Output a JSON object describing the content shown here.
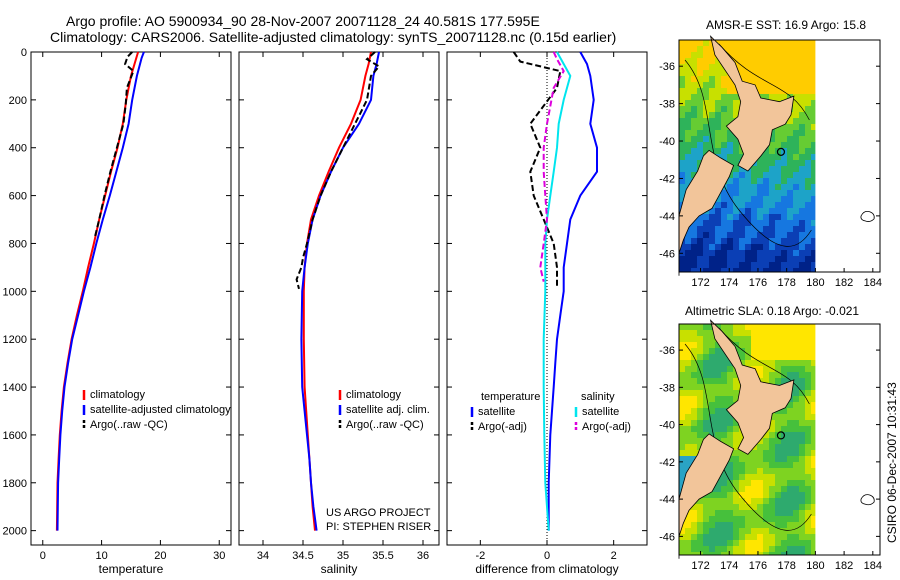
{
  "header": {
    "line1": "Argo profile: AO 5900934_90 28-Nov-2007 20071128_24 40.581S 177.595E",
    "line2": "Climatology: CARS2006. Satellite-adjusted climatology: synTS_20071128.nc (0.15d earlier)"
  },
  "stamp": "CSIRO 06-Dec-2007 10:31:43",
  "project_note": [
    "US ARGO PROJECT",
    "PI: STEPHEN RISER"
  ],
  "colors": {
    "climatology": "#ff0000",
    "satellite": "#0000ff",
    "argo": "#000000",
    "sat_salinity": "#00e5ee",
    "argo_salinity": "#dd00dd",
    "land": "#f2c59a"
  },
  "chart_data": [
    {
      "type": "line",
      "xlabel": "temperature",
      "xlim": [
        -2,
        32
      ],
      "ylim": [
        2060,
        0
      ],
      "x_ticks": [
        0,
        10,
        20,
        30
      ],
      "y_ticks": [
        0,
        200,
        400,
        600,
        800,
        1000,
        1200,
        1400,
        1600,
        1800,
        2000
      ],
      "legend": [
        "climatology",
        "satellite-adjusted climatology",
        "Argo(..raw -QC)"
      ],
      "series": [
        {
          "name": "climatology",
          "color": "#ff0000",
          "dash": "solid",
          "x": [
            16.2,
            15.9,
            15.0,
            14.2,
            13.6,
            12.7,
            11.6,
            10.6,
            9.6,
            8.7,
            7.7,
            6.8,
            5.8,
            4.9,
            4.2,
            3.6,
            3.2,
            2.9,
            2.7,
            2.5,
            2.4
          ],
          "y": [
            0,
            25,
            100,
            200,
            300,
            400,
            500,
            600,
            700,
            800,
            900,
            1000,
            1100,
            1200,
            1300,
            1400,
            1500,
            1600,
            1700,
            1800,
            2000
          ]
        },
        {
          "name": "satellite-adjusted climatology",
          "color": "#0000ff",
          "dash": "solid",
          "x": [
            17.2,
            16.8,
            16.0,
            15.2,
            14.6,
            13.6,
            12.5,
            11.4,
            10.2,
            9.1,
            8.1,
            7.0,
            6.0,
            5.0,
            4.3,
            3.7,
            3.3,
            3.0,
            2.8,
            2.6,
            2.5
          ],
          "y": [
            0,
            25,
            100,
            200,
            300,
            400,
            500,
            600,
            700,
            800,
            900,
            1000,
            1100,
            1200,
            1300,
            1400,
            1500,
            1600,
            1700,
            1800,
            2000
          ]
        },
        {
          "name": "Argo(..raw -QC)",
          "color": "#000000",
          "dash": "dashed",
          "x": [
            15.2,
            14.4,
            14.0,
            15.4,
            14.3,
            14.1,
            13.7,
            12.6,
            11.5,
            10.5,
            9.6,
            8.8
          ],
          "y": [
            0,
            20,
            50,
            80,
            150,
            220,
            300,
            400,
            500,
            600,
            700,
            780
          ]
        }
      ]
    },
    {
      "type": "line",
      "xlabel": "salinity",
      "xlim": [
        33.7,
        36.2
      ],
      "ylim": [
        2060,
        0
      ],
      "x_ticks": [
        34,
        34.5,
        35,
        35.5,
        36
      ],
      "legend": [
        "climatology",
        "satellite adj. clim.",
        "Argo(..raw -QC)"
      ],
      "series": [
        {
          "name": "climatology",
          "color": "#ff0000",
          "dash": "solid",
          "x": [
            35.35,
            35.32,
            35.28,
            35.22,
            35.1,
            34.95,
            34.82,
            34.7,
            34.6,
            34.55,
            34.52,
            34.51,
            34.51,
            34.52,
            34.54,
            34.56,
            34.58,
            34.6,
            34.62,
            34.65
          ],
          "y": [
            0,
            50,
            100,
            200,
            300,
            400,
            500,
            600,
            700,
            800,
            900,
            1000,
            1200,
            1400,
            1500,
            1600,
            1700,
            1800,
            1900,
            2000
          ]
        },
        {
          "name": "satellite adj. clim.",
          "color": "#0000ff",
          "dash": "solid",
          "x": [
            35.45,
            35.42,
            35.38,
            35.35,
            35.2,
            35.0,
            34.85,
            34.72,
            34.62,
            34.56,
            34.52,
            34.49,
            34.48,
            34.49,
            34.52,
            34.55,
            34.58,
            34.6,
            34.63,
            34.67
          ],
          "y": [
            0,
            50,
            100,
            200,
            300,
            400,
            500,
            600,
            700,
            800,
            900,
            1000,
            1200,
            1400,
            1500,
            1600,
            1700,
            1800,
            1900,
            2000
          ]
        },
        {
          "name": "Argo(..raw -QC)",
          "color": "#000000",
          "dash": "dashed",
          "x": [
            35.4,
            35.3,
            35.45,
            35.35,
            35.3,
            35.15,
            35.0,
            34.85,
            34.72,
            34.62,
            34.55,
            34.5,
            34.48,
            34.42,
            34.45
          ],
          "y": [
            0,
            30,
            60,
            100,
            200,
            300,
            400,
            500,
            600,
            700,
            800,
            860,
            900,
            950,
            990
          ]
        }
      ]
    },
    {
      "type": "line",
      "xlabel": "difference from climatology",
      "xlim": [
        -3,
        3
      ],
      "ylim": [
        2060,
        0
      ],
      "x_ticks": [
        -2,
        0,
        2
      ],
      "legend_groups": [
        {
          "title": "temperature",
          "items": [
            "satellite",
            "Argo(-adj)"
          ]
        },
        {
          "title": "salinity",
          "items": [
            "satellite",
            "Argo(-adj)"
          ]
        }
      ],
      "series": [
        {
          "name": "temperature satellite",
          "color": "#0000ff",
          "dash": "solid",
          "x": [
            1.0,
            1.2,
            1.3,
            1.4,
            1.3,
            1.5,
            1.5,
            1.0,
            0.7,
            0.6,
            0.5,
            0.5,
            0.4,
            0.3,
            0.25,
            0.2,
            0.15,
            0.1,
            0.05,
            0.05
          ],
          "y": [
            0,
            50,
            100,
            200,
            300,
            400,
            500,
            600,
            700,
            800,
            900,
            1000,
            1100,
            1200,
            1300,
            1400,
            1500,
            1600,
            1800,
            2000
          ]
        },
        {
          "name": "temperature Argo(-adj)",
          "color": "#000000",
          "dash": "dashed",
          "x": [
            -1.0,
            -0.8,
            0.4,
            0.3,
            -0.5,
            -0.2,
            -0.5,
            -0.4,
            -0.1,
            0.2,
            0.3,
            0.3
          ],
          "y": [
            0,
            40,
            80,
            150,
            300,
            400,
            500,
            600,
            700,
            800,
            900,
            980
          ]
        },
        {
          "name": "salinity satellite",
          "color": "#00e5ee",
          "dash": "solid",
          "x": [
            0.3,
            0.5,
            0.7,
            0.5,
            0.35,
            0.3,
            0.2,
            0.1,
            0.0,
            -0.05,
            -0.05,
            -0.1,
            -0.1,
            -0.08,
            -0.05,
            0.0,
            0.05
          ],
          "y": [
            0,
            50,
            100,
            200,
            300,
            400,
            500,
            600,
            700,
            800,
            1000,
            1200,
            1400,
            1600,
            1800,
            1900,
            2000
          ]
        },
        {
          "name": "salinity Argo(-adj)",
          "color": "#dd00dd",
          "dash": "dashed",
          "x": [
            0.2,
            0.3,
            0.5,
            0.2,
            0.0,
            -0.1,
            -0.1,
            -0.05,
            0.0,
            -0.1,
            -0.2,
            -0.1
          ],
          "y": [
            0,
            30,
            80,
            150,
            300,
            400,
            500,
            600,
            700,
            800,
            900,
            960
          ]
        }
      ]
    },
    {
      "type": "heatmap",
      "title": "AMSR-E SST: 16.9 Argo: 15.8",
      "xlim": [
        170.5,
        184.5
      ],
      "ylim": [
        -47,
        -34.6
      ],
      "data_xmax": 180,
      "x_ticks": [
        172,
        174,
        176,
        178,
        180,
        182,
        184
      ],
      "y_ticks": [
        -36,
        -38,
        -40,
        -42,
        -44,
        -46
      ],
      "argo_position": [
        177.6,
        -40.58
      ],
      "colors": [
        "#ffcc00",
        "#c8e000",
        "#66cc33",
        "#2eb35a",
        "#1da3c8",
        "#1677e0",
        "#0b3fb5",
        "#002288"
      ]
    },
    {
      "type": "heatmap",
      "title": "Altimetric SLA: 0.18 Argo: -0.021",
      "xlim": [
        170.5,
        184.5
      ],
      "ylim": [
        -47,
        -34.6
      ],
      "data_xmax": 180,
      "x_ticks": [
        172,
        174,
        176,
        178,
        180,
        182,
        184
      ],
      "y_ticks": [
        -36,
        -38,
        -40,
        -42,
        -44,
        -46
      ],
      "argo_position": [
        177.6,
        -40.58
      ],
      "colors": [
        "#ffe600",
        "#c8e000",
        "#7ed321",
        "#46c03c",
        "#2eaa6e",
        "#2aa3c4"
      ]
    }
  ]
}
